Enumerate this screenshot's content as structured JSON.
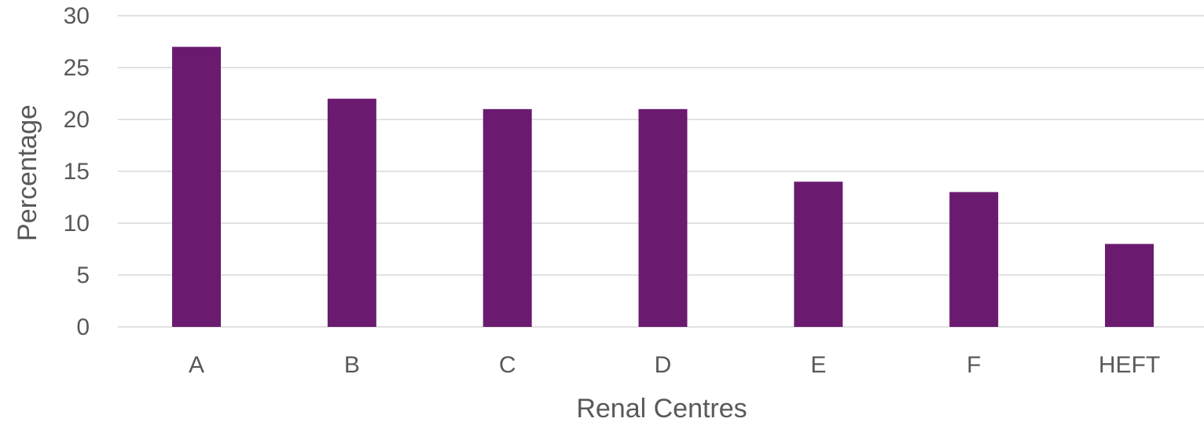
{
  "chart_data": {
    "type": "bar",
    "categories": [
      "A",
      "B",
      "C",
      "D",
      "E",
      "F",
      "HEFT"
    ],
    "values": [
      27,
      22,
      21,
      21,
      14,
      13,
      8
    ],
    "xlabel": "Renal Centres",
    "ylabel": "Percentage",
    "ylim": [
      0,
      30
    ],
    "yticks": [
      0,
      5,
      10,
      15,
      20,
      25,
      30
    ],
    "grid": true,
    "bar_color": "#6a1b6f"
  }
}
